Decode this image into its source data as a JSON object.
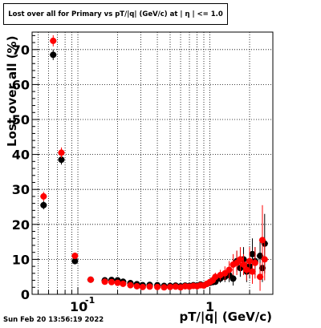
{
  "chart_data": {
    "type": "scatter",
    "title": "Lost over all for Primary vs pT/|q| (GeV/c) at | η | <= 1.0",
    "xlabel": "pT/|q| (GeV/c)",
    "ylabel": "Lost over all (%)",
    "x_scale": "log",
    "xlim": [
      0.045,
      3.0
    ],
    "ylim": [
      0,
      75
    ],
    "grid": true,
    "y_ticks": [
      0,
      10,
      20,
      30,
      40,
      50,
      60,
      70
    ],
    "x_tick_labels": [
      {
        "value": 0.1,
        "base": "10",
        "exponent": "-1"
      },
      {
        "value": 1,
        "text": "1"
      }
    ],
    "series": [
      {
        "color": "#000000",
        "x": [
          0.055,
          0.065,
          0.075,
          0.095,
          0.125,
          0.16,
          0.18,
          0.2,
          0.22,
          0.25,
          0.28,
          0.31,
          0.35,
          0.4,
          0.45,
          0.5,
          0.55,
          0.6,
          0.65,
          0.7,
          0.75,
          0.8,
          0.85,
          0.9,
          0.95,
          1.0,
          1.05,
          1.1,
          1.2,
          1.3,
          1.4,
          1.5,
          1.6,
          1.7,
          1.8,
          1.9,
          2.0,
          2.1,
          2.2,
          2.4,
          2.5,
          2.6
        ],
        "y": [
          25.5,
          68.5,
          38.5,
          9.5,
          4.2,
          4.0,
          4.1,
          4.0,
          3.6,
          3.2,
          2.9,
          2.6,
          2.7,
          2.6,
          2.4,
          2.4,
          2.5,
          2.3,
          2.5,
          2.4,
          2.6,
          2.5,
          2.8,
          2.6,
          3.0,
          3.3,
          3.5,
          3.6,
          4.5,
          5.0,
          5.5,
          4.5,
          9.5,
          7.5,
          10.0,
          6.5,
          8.0,
          11.5,
          9.5,
          11.0,
          7.5,
          14.5
        ],
        "yerr": [
          1.2,
          1.5,
          1.4,
          0.8,
          0.5,
          0.4,
          0.4,
          0.4,
          0.4,
          0.3,
          0.3,
          0.3,
          0.3,
          0.3,
          0.3,
          0.3,
          0.3,
          0.3,
          0.4,
          0.4,
          0.4,
          0.4,
          0.5,
          0.5,
          0.6,
          0.7,
          0.8,
          0.9,
          1.2,
          1.5,
          2.0,
          2.0,
          3.0,
          2.5,
          3.5,
          3.0,
          3.5,
          4.5,
          4.0,
          5.0,
          4.0,
          8.5
        ]
      },
      {
        "color": "#ff0000",
        "x": [
          0.055,
          0.065,
          0.075,
          0.095,
          0.125,
          0.16,
          0.18,
          0.2,
          0.22,
          0.25,
          0.28,
          0.31,
          0.35,
          0.4,
          0.45,
          0.5,
          0.55,
          0.6,
          0.65,
          0.7,
          0.75,
          0.8,
          0.85,
          0.9,
          0.95,
          1.0,
          1.05,
          1.1,
          1.2,
          1.3,
          1.4,
          1.5,
          1.6,
          1.7,
          1.8,
          1.9,
          2.0,
          2.1,
          2.2,
          2.4,
          2.5,
          2.6
        ],
        "y": [
          28.0,
          72.5,
          40.5,
          11.0,
          4.2,
          3.6,
          3.5,
          3.3,
          3.0,
          2.6,
          2.3,
          2.1,
          2.2,
          2.1,
          2.0,
          2.1,
          2.2,
          2.0,
          2.3,
          2.2,
          2.4,
          2.3,
          2.6,
          2.5,
          3.0,
          3.5,
          4.0,
          5.0,
          5.5,
          6.0,
          7.0,
          8.5,
          9.0,
          10.0,
          8.5,
          7.0,
          9.5,
          6.5,
          9.0,
          5.0,
          15.5,
          10.0
        ],
        "yerr": [
          1.3,
          1.6,
          1.5,
          0.9,
          0.5,
          0.4,
          0.4,
          0.4,
          0.3,
          0.3,
          0.3,
          0.3,
          0.3,
          0.3,
          0.3,
          0.3,
          0.3,
          0.3,
          0.4,
          0.4,
          0.4,
          0.4,
          0.5,
          0.5,
          0.7,
          0.8,
          1.0,
          1.2,
          1.5,
          2.0,
          2.5,
          3.0,
          3.5,
          3.5,
          3.0,
          3.0,
          4.0,
          3.5,
          4.5,
          4.0,
          10.0,
          6.0
        ]
      }
    ]
  },
  "footer": {
    "timestamp": "Sun Feb 20 13:56:19 2022"
  }
}
